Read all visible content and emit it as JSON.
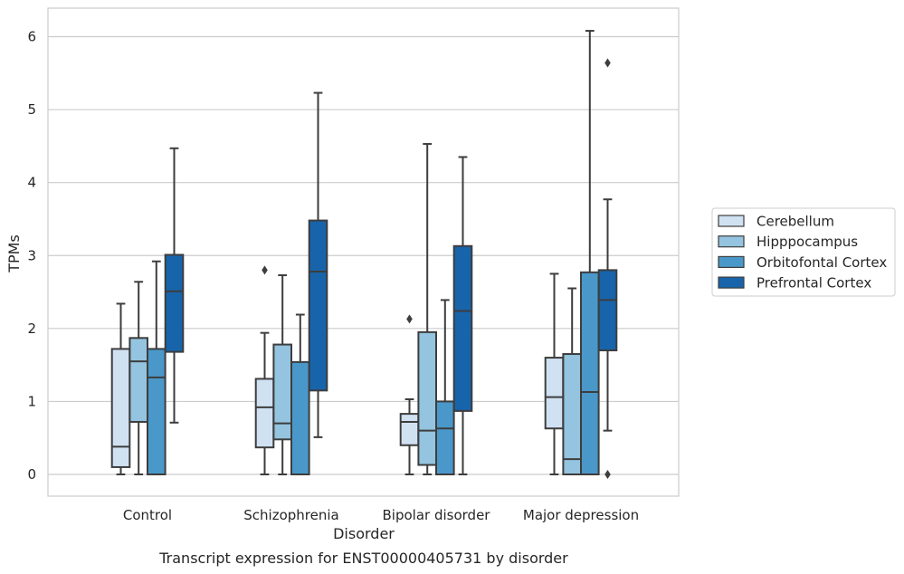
{
  "chart_data": {
    "type": "box",
    "xlabel": "Disorder",
    "ylabel": "TPMs",
    "caption": "Transcript expression for ENST00000405731 by disorder",
    "ylim": [
      -0.3,
      6.4
    ],
    "yticks": [
      0,
      1,
      2,
      3,
      4,
      5,
      6
    ],
    "grid": "horizontal",
    "legend_position": "right",
    "categories": [
      "Control",
      "Schizophrenia",
      "Bipolar disorder",
      "Major depression"
    ],
    "series": [
      {
        "name": "Cerebellum",
        "color": "#d0e1f2",
        "boxes": [
          {
            "whisker_low": 0.0,
            "q1": 0.1,
            "median": 0.38,
            "q3": 1.72,
            "whisker_high": 2.34,
            "outliers": []
          },
          {
            "whisker_low": 0.0,
            "q1": 0.37,
            "median": 0.92,
            "q3": 1.31,
            "whisker_high": 1.94,
            "outliers": [
              2.8
            ]
          },
          {
            "whisker_low": 0.0,
            "q1": 0.4,
            "median": 0.72,
            "q3": 0.83,
            "whisker_high": 1.03,
            "outliers": [
              2.13
            ]
          },
          {
            "whisker_low": 0.0,
            "q1": 0.63,
            "median": 1.06,
            "q3": 1.6,
            "whisker_high": 2.75,
            "outliers": []
          }
        ]
      },
      {
        "name": "Hipppocampus",
        "color": "#94c4df",
        "boxes": [
          {
            "whisker_low": 0.0,
            "q1": 0.72,
            "median": 1.55,
            "q3": 1.87,
            "whisker_high": 2.64,
            "outliers": []
          },
          {
            "whisker_low": 0.0,
            "q1": 0.48,
            "median": 0.7,
            "q3": 1.78,
            "whisker_high": 2.73,
            "outliers": []
          },
          {
            "whisker_low": 0.0,
            "q1": 0.13,
            "median": 0.6,
            "q3": 1.95,
            "whisker_high": 4.53,
            "outliers": []
          },
          {
            "whisker_low": 0.0,
            "q1": 0.0,
            "median": 0.21,
            "q3": 1.65,
            "whisker_high": 2.55,
            "outliers": []
          }
        ]
      },
      {
        "name": "Orbitofontal Cortex",
        "color": "#4a98c9",
        "boxes": [
          {
            "whisker_low": 0.0,
            "q1": 0.0,
            "median": 1.33,
            "q3": 1.72,
            "whisker_high": 2.92,
            "outliers": []
          },
          {
            "whisker_low": 0.0,
            "q1": 0.0,
            "median": 0.0,
            "q3": 1.54,
            "whisker_high": 2.19,
            "outliers": []
          },
          {
            "whisker_low": 0.0,
            "q1": 0.0,
            "median": 0.63,
            "q3": 1.0,
            "whisker_high": 2.39,
            "outliers": []
          },
          {
            "whisker_low": 0.0,
            "q1": 0.0,
            "median": 1.13,
            "q3": 2.77,
            "whisker_high": 6.08,
            "outliers": []
          }
        ]
      },
      {
        "name": "Prefrontal Cortex",
        "color": "#1764ab",
        "boxes": [
          {
            "whisker_low": 0.71,
            "q1": 1.68,
            "median": 2.51,
            "q3": 3.01,
            "whisker_high": 4.47,
            "outliers": []
          },
          {
            "whisker_low": 0.51,
            "q1": 1.15,
            "median": 2.78,
            "q3": 3.48,
            "whisker_high": 5.23,
            "outliers": []
          },
          {
            "whisker_low": 0.0,
            "q1": 0.87,
            "median": 2.24,
            "q3": 3.13,
            "whisker_high": 4.35,
            "outliers": []
          },
          {
            "whisker_low": 0.6,
            "q1": 1.7,
            "median": 2.39,
            "q3": 2.8,
            "whisker_high": 3.77,
            "outliers": [
              0.0,
              5.64
            ]
          }
        ]
      }
    ]
  }
}
